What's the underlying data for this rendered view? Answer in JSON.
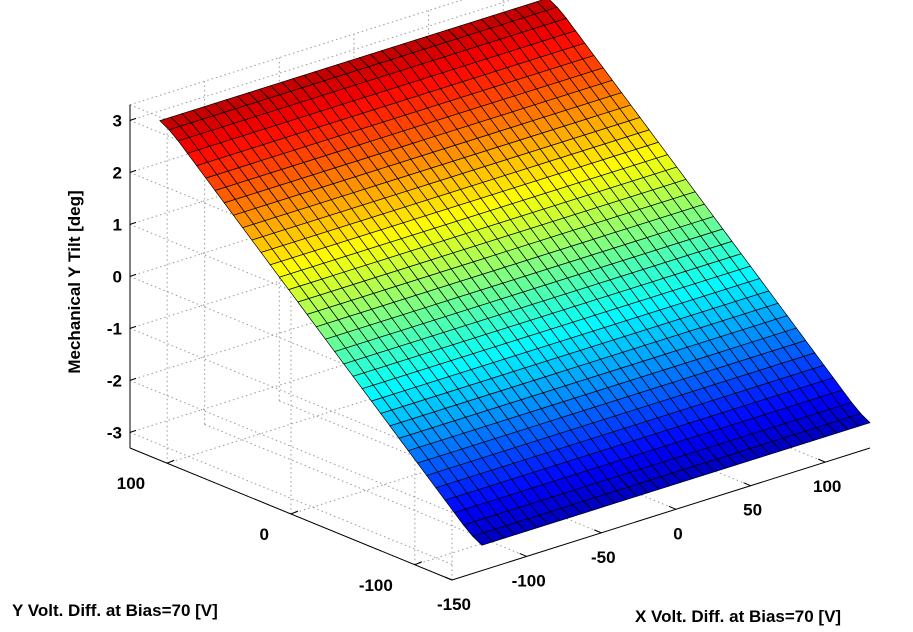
{
  "chart_data": {
    "type": "surface",
    "title": "",
    "xlabel": "X Volt. Diff. at Bias=70 [V]",
    "ylabel": "Y Volt. Diff. at Bias=70 [V]",
    "zlabel": "Mechanical Y Tilt [deg]",
    "xlim": [
      -150,
      130
    ],
    "ylim": [
      -130,
      130
    ],
    "zlim": [
      -3.3,
      3.3
    ],
    "x_ticks": [
      -150,
      -100,
      -50,
      0,
      50,
      100
    ],
    "y_ticks": [
      -100,
      0,
      100
    ],
    "z_ticks": [
      -3,
      -2,
      -1,
      0,
      1,
      2,
      3
    ],
    "x_range": [
      -130,
      130
    ],
    "y_range": [
      -130,
      130
    ],
    "grid_x_count": 35,
    "grid_y_count": 35,
    "surface": "z increases linearly with Y voltage difference; approximately -2.9 deg at Y=-130 V to 2.9 deg at Y=130 V, nearly independent of X",
    "z_at_y_min": -2.9,
    "z_at_y_max": 2.9,
    "colormap": "jet",
    "grid": true
  }
}
